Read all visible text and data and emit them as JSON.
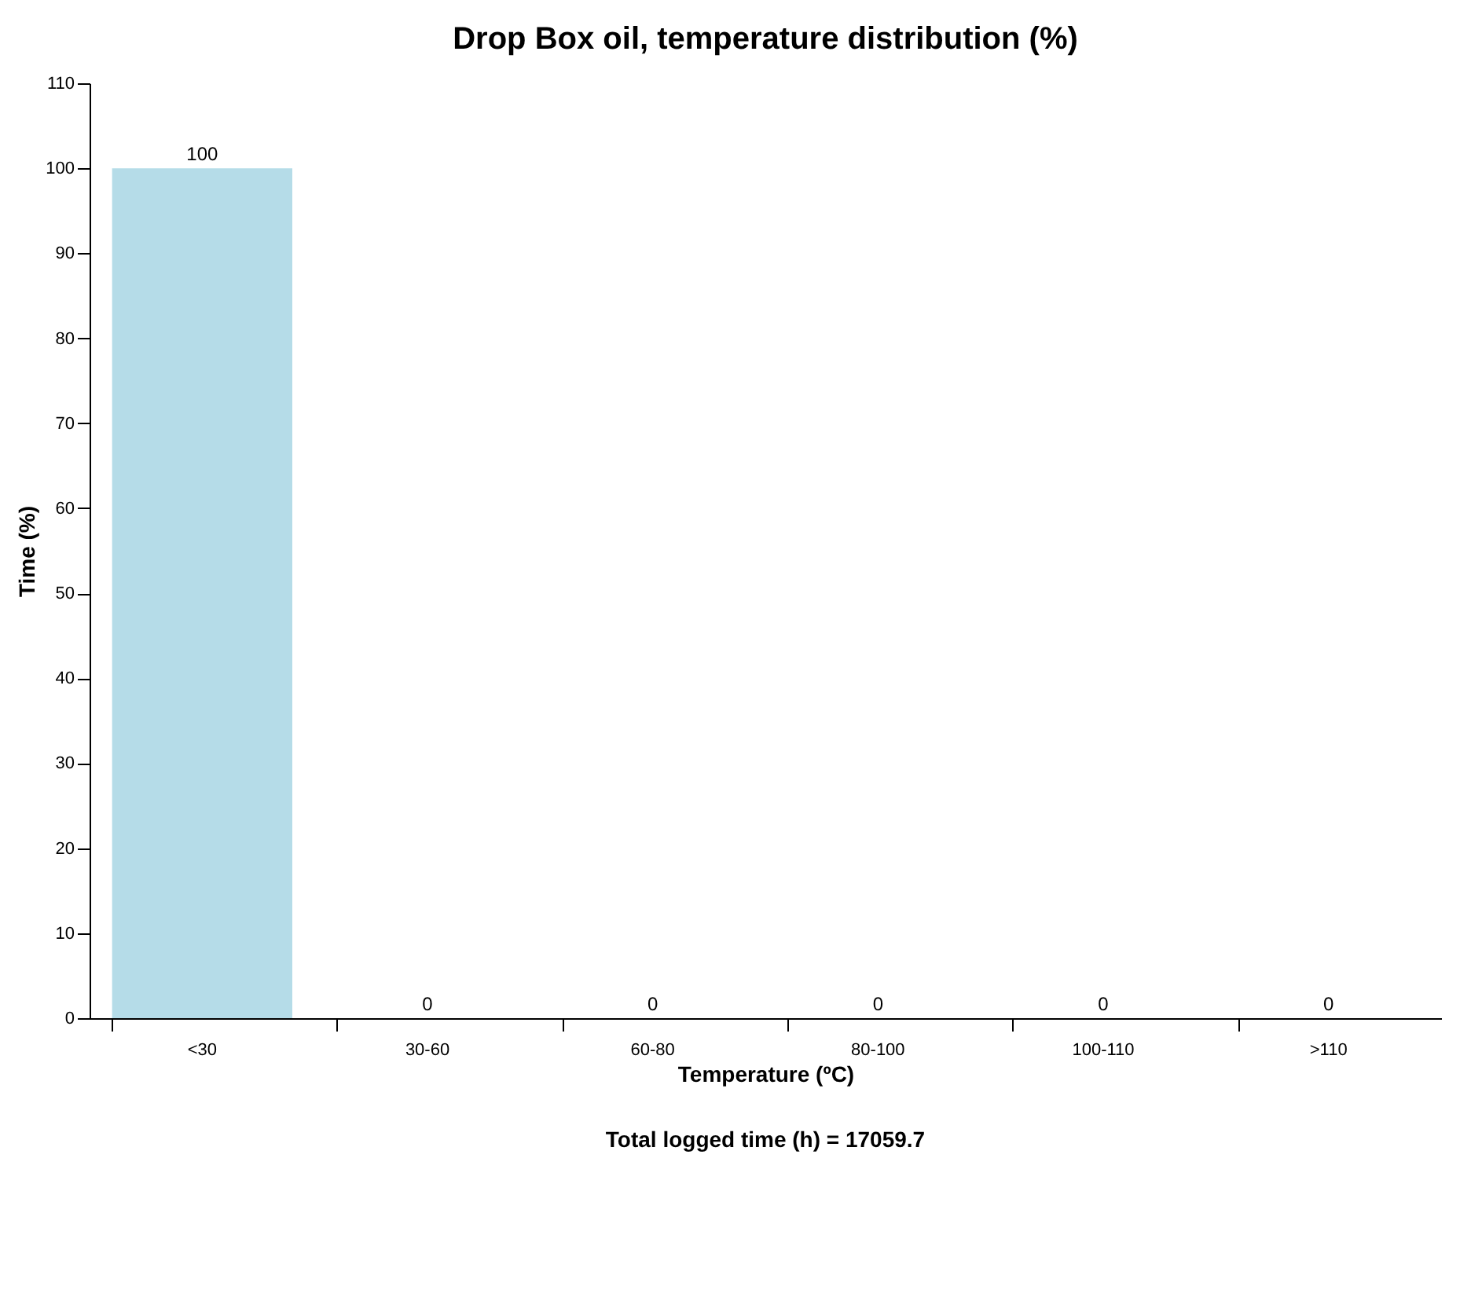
{
  "chart_data": {
    "type": "bar",
    "title": "Drop Box oil, temperature distribution (%)",
    "xlabel": "Temperature (ºC)",
    "ylabel": "Time (%)",
    "categories": [
      "<30",
      "30-60",
      "60-80",
      "80-100",
      "100-110",
      ">110"
    ],
    "values": [
      100,
      0,
      0,
      0,
      0,
      0
    ],
    "color": "#b5dce8",
    "ylim": [
      0,
      110
    ],
    "yticks": [
      0,
      10,
      20,
      30,
      40,
      50,
      60,
      70,
      80,
      90,
      100,
      110
    ],
    "data_labels": true,
    "grid": false,
    "annotations": [
      "Total logged time (h) = 17059.7"
    ]
  }
}
